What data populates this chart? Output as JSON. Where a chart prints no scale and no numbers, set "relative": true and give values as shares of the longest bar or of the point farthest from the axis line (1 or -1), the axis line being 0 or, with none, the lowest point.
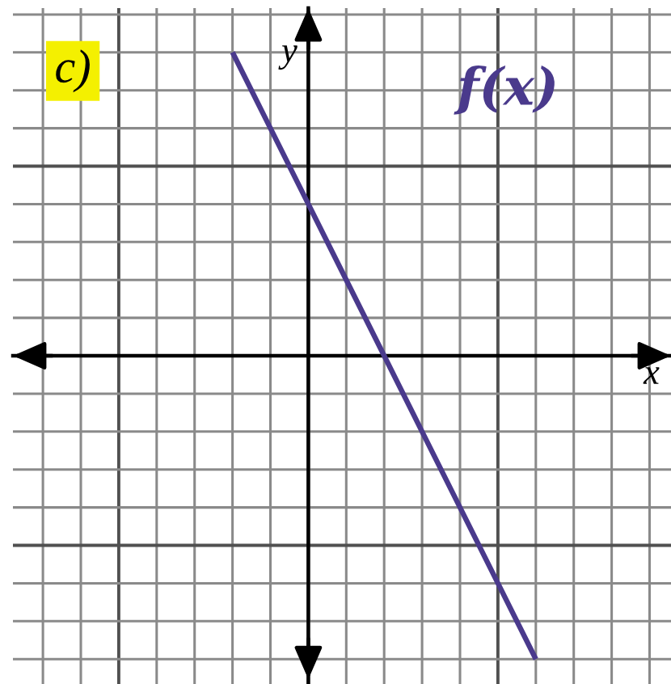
{
  "chart_data": {
    "type": "line",
    "relative": true,
    "xlabel": "x",
    "ylabel": "y",
    "annotations": [
      "c)"
    ],
    "grid": true,
    "categories": [
      null,
      null,
      null,
      null,
      null,
      null,
      null,
      null,
      null
    ],
    "series": [
      {
        "name": "f(x)",
        "color": "#4a3a8c",
        "values": [
          1,
          0.75,
          0.5,
          0.25,
          0,
          -0.25,
          -0.5,
          -0.75,
          -1
        ]
      }
    ]
  }
}
